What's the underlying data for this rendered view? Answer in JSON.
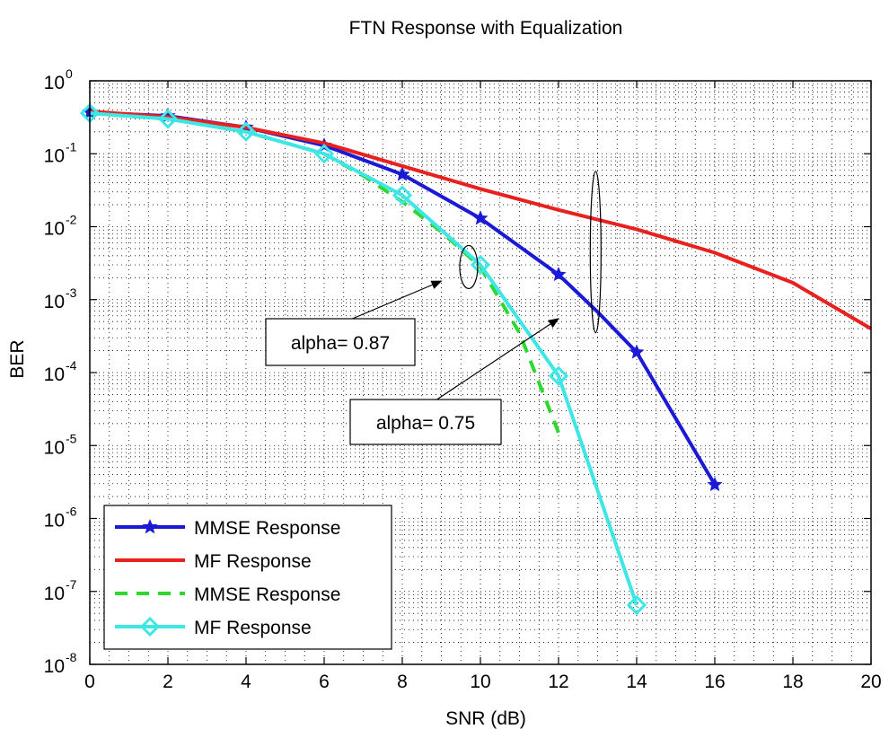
{
  "chart_data": {
    "type": "line",
    "title": "FTN Response with Equalization",
    "xlabel": "SNR (dB)",
    "ylabel": "BER",
    "xlim": [
      0,
      20
    ],
    "ylim": [
      1e-08,
      1
    ],
    "yscale": "log",
    "x_ticks": [
      "0",
      "2",
      "4",
      "6",
      "8",
      "10",
      "12",
      "14",
      "16",
      "18",
      "20"
    ],
    "y_ticks": [
      {
        "base": "10",
        "exp": "0"
      },
      {
        "base": "10",
        "exp": "-1"
      },
      {
        "base": "10",
        "exp": "-2"
      },
      {
        "base": "10",
        "exp": "-3"
      },
      {
        "base": "10",
        "exp": "-4"
      },
      {
        "base": "10",
        "exp": "-5"
      },
      {
        "base": "10",
        "exp": "-6"
      },
      {
        "base": "10",
        "exp": "-7"
      },
      {
        "base": "10",
        "exp": "-8"
      }
    ],
    "grid": "dotted, major and minor",
    "legend_position": "bottom-left",
    "series": [
      {
        "name": "MMSE Response",
        "color": "#1a1ad6",
        "line_style": "solid",
        "marker": "star",
        "points": [
          [
            0,
            0.37
          ],
          [
            2,
            0.33
          ],
          [
            4,
            0.23
          ],
          [
            6,
            0.13
          ],
          [
            8,
            0.052
          ],
          [
            10,
            0.013
          ],
          [
            12,
            0.0022
          ],
          [
            13,
            0.00068
          ],
          [
            14,
            0.00019
          ],
          [
            16,
            2.9e-06
          ]
        ]
      },
      {
        "name": "MF Response",
        "color": "#e8201e",
        "line_style": "solid",
        "marker": "none",
        "points": [
          [
            0,
            0.38
          ],
          [
            2,
            0.32
          ],
          [
            4,
            0.23
          ],
          [
            6,
            0.14
          ],
          [
            8,
            0.068
          ],
          [
            10,
            0.033
          ],
          [
            12,
            0.017
          ],
          [
            14,
            0.0092
          ],
          [
            16,
            0.0044
          ],
          [
            18,
            0.0017
          ],
          [
            20,
            0.0004
          ]
        ]
      },
      {
        "name": "MMSE Response",
        "color": "#2ed92e",
        "line_style": "dashed",
        "marker": "none",
        "points": [
          [
            0,
            0.36
          ],
          [
            2,
            0.3
          ],
          [
            4,
            0.2
          ],
          [
            6,
            0.1
          ],
          [
            7,
            0.05
          ],
          [
            8,
            0.022
          ],
          [
            9,
            0.0085
          ],
          [
            10,
            0.0028
          ],
          [
            11,
            0.00035
          ],
          [
            12,
            1.5e-05
          ]
        ]
      },
      {
        "name": "MF Response",
        "color": "#3ee6e6",
        "line_style": "solid",
        "marker": "diamond",
        "points": [
          [
            0,
            0.36
          ],
          [
            2,
            0.3
          ],
          [
            4,
            0.2
          ],
          [
            6,
            0.1
          ],
          [
            8,
            0.027
          ],
          [
            10,
            0.003
          ],
          [
            12,
            9e-05
          ],
          [
            14,
            6.5e-08
          ]
        ]
      }
    ],
    "annotations": [
      {
        "text": "alpha= 0.87",
        "ellipse_center": [
          9.7,
          0.0028
        ],
        "arrow_to": [
          9.0,
          0.0018
        ]
      },
      {
        "text": "alpha= 0.75",
        "ellipse_center": [
          12.95,
          0.0045
        ],
        "arrow_to": [
          12.0,
          0.00055
        ]
      }
    ]
  }
}
